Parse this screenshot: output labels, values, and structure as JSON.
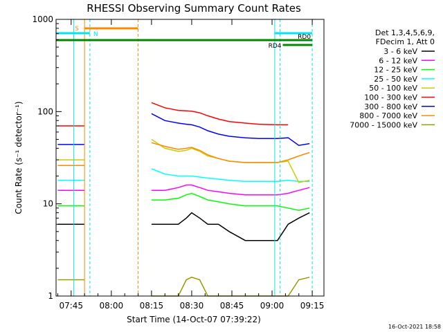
{
  "chart_data": {
    "type": "line",
    "title": "RHESSI Observing Summary Count Rates",
    "xlabel": "Start Time (14-Oct-07 07:39:22)",
    "ylabel": "Count Rate (s⁻¹ detector⁻¹)",
    "y_scale": "log",
    "ylim": [
      1,
      1000
    ],
    "y_tick_labels": [
      "1",
      "10",
      "100",
      "1000"
    ],
    "xlim_minutes_after_0700": [
      39.37,
      139.37
    ],
    "x_tick_labels": [
      "07:45",
      "08:00",
      "08:15",
      "08:30",
      "08:45",
      "09:00",
      "09:15"
    ],
    "x_tick_minutes_after_0700": [
      45,
      60,
      75,
      90,
      105,
      120,
      135
    ],
    "legend_header": [
      "Det 1,3,4,5,6,9,",
      "FDecim 1, Att 0"
    ],
    "legend_placement": "right",
    "data_gap": {
      "start": "07:50",
      "end": "08:10"
    },
    "series": [
      {
        "name": "3 - 6 keV",
        "color": "#000000",
        "time_minutes_after_0700": [
          40,
          50,
          70,
          75,
          80,
          85,
          88,
          90,
          93,
          96,
          100,
          104,
          110,
          115,
          122,
          126,
          130,
          134
        ],
        "values": [
          6,
          6,
          null,
          6,
          6,
          6,
          7,
          8,
          7,
          6,
          6,
          5,
          4,
          4,
          4,
          6,
          7,
          8
        ]
      },
      {
        "name": "6 - 12 keV",
        "color": "#ff00ff",
        "time_minutes_after_0700": [
          40,
          50,
          70,
          75,
          80,
          85,
          88,
          90,
          93,
          96,
          100,
          104,
          110,
          115,
          122,
          126,
          130,
          134
        ],
        "values": [
          14,
          14,
          null,
          14,
          14,
          15,
          16,
          16,
          15,
          14,
          13.5,
          13,
          12.5,
          12.5,
          12.5,
          13,
          14,
          15
        ]
      },
      {
        "name": "12 - 25 keV",
        "color": "#00ff00",
        "time_minutes_after_0700": [
          40,
          50,
          70,
          75,
          80,
          85,
          88,
          90,
          93,
          96,
          100,
          104,
          110,
          115,
          122,
          126,
          130,
          134
        ],
        "values": [
          9.5,
          9.5,
          null,
          11,
          11,
          11.5,
          12.5,
          13,
          12,
          11,
          10.5,
          10,
          9.5,
          9.5,
          9.5,
          9,
          8.5,
          9
        ]
      },
      {
        "name": "25 - 50 keV",
        "color": "#00ffff",
        "time_minutes_after_0700": [
          40,
          50,
          70,
          75,
          80,
          85,
          88,
          90,
          93,
          96,
          100,
          104,
          110,
          115,
          122,
          126,
          130,
          134
        ],
        "values": [
          18,
          18,
          null,
          24,
          21,
          20,
          20,
          20,
          19.5,
          19,
          18.5,
          18,
          17.5,
          17.5,
          17.5,
          18,
          17.5,
          17.5
        ]
      },
      {
        "name": "50 - 100 keV",
        "color": "#cccc00",
        "time_minutes_after_0700": [
          40,
          50,
          70,
          75,
          80,
          85,
          88,
          90,
          93,
          96,
          100,
          104,
          110,
          115,
          122,
          126,
          130,
          134
        ],
        "values": [
          30,
          30,
          null,
          50,
          40,
          37,
          38,
          40,
          37,
          33,
          31,
          29,
          28,
          28,
          28,
          29,
          17,
          18
        ]
      },
      {
        "name": "100 - 300 keV",
        "color": "#ff0000",
        "time_minutes_after_0700": [
          40,
          50,
          70,
          75,
          80,
          85,
          88,
          90,
          93,
          96,
          100,
          104,
          110,
          115,
          122,
          126,
          130,
          134
        ],
        "values": [
          70,
          70,
          null,
          125,
          110,
          103,
          102,
          101,
          97,
          90,
          83,
          78,
          75,
          73,
          72,
          72,
          null,
          null
        ]
      },
      {
        "name": "300 - 800 keV",
        "color": "#0000ff",
        "time_minutes_after_0700": [
          40,
          50,
          70,
          75,
          80,
          85,
          88,
          90,
          93,
          96,
          100,
          104,
          110,
          115,
          122,
          126,
          130,
          134
        ],
        "values": [
          44,
          44,
          null,
          95,
          80,
          75,
          73,
          72,
          68,
          62,
          57,
          54,
          52,
          51,
          51,
          52,
          43,
          45
        ]
      },
      {
        "name": "800 - 7000 keV",
        "color": "#ff8800",
        "time_minutes_after_0700": [
          40,
          50,
          70,
          75,
          80,
          85,
          88,
          90,
          93,
          96,
          100,
          104,
          110,
          115,
          122,
          126,
          130,
          134
        ],
        "values": [
          26,
          26,
          null,
          46,
          42,
          39,
          40,
          41,
          38,
          34,
          31,
          29,
          28,
          28,
          28,
          30,
          33,
          36
        ]
      },
      {
        "name": "7000 - 15000 keV",
        "color": "#999900",
        "time_minutes_after_0700": [
          40,
          50,
          70,
          75,
          80,
          85,
          88,
          90,
          93,
          96,
          100,
          104,
          110,
          115,
          122,
          126,
          130,
          134
        ],
        "values": [
          1.5,
          1.5,
          null,
          1,
          1,
          1,
          1.5,
          1.6,
          1.5,
          1,
          1,
          1,
          1,
          1,
          1,
          1,
          1.5,
          1.6
        ]
      }
    ],
    "vertical_markers": [
      {
        "time": "07:46",
        "color": "#00e5ee",
        "style": "solid"
      },
      {
        "time": "07:50",
        "color": "#ff8800",
        "style": "solid"
      },
      {
        "time": "07:52",
        "color": "#00e5ee",
        "style": "dashed"
      },
      {
        "time": "08:10",
        "color": "#ff8800",
        "style": "dashed"
      },
      {
        "time": "09:01",
        "color": "#00e5ee",
        "style": "solid"
      },
      {
        "time": "09:03",
        "color": "#00e5ee",
        "style": "dashed"
      },
      {
        "time": "09:15",
        "color": "#00e5ee",
        "style": "dashed"
      }
    ],
    "flag_bars": [
      {
        "label": "S",
        "color": "#ff8800",
        "start": "07:50",
        "end": "08:10",
        "level": "upper"
      },
      {
        "label": "N",
        "color": "#00e5ee",
        "start": "07:39",
        "end": "07:52",
        "level": "middle"
      },
      {
        "label": "",
        "color": "#00e5ee",
        "start": "09:01",
        "end": "09:15",
        "level": "middle"
      },
      {
        "label": "",
        "color": "#008800",
        "start": "07:39",
        "end": "09:15",
        "level": "lower"
      },
      {
        "label": "RD0",
        "color": "#008800",
        "start": "09:08",
        "end": "09:15",
        "level": "lower"
      },
      {
        "label": "RD4",
        "color": "#008800",
        "start": "09:04",
        "end": "09:15",
        "level": "lowest"
      }
    ],
    "timestamp": "16-Oct-2021 18:58"
  }
}
